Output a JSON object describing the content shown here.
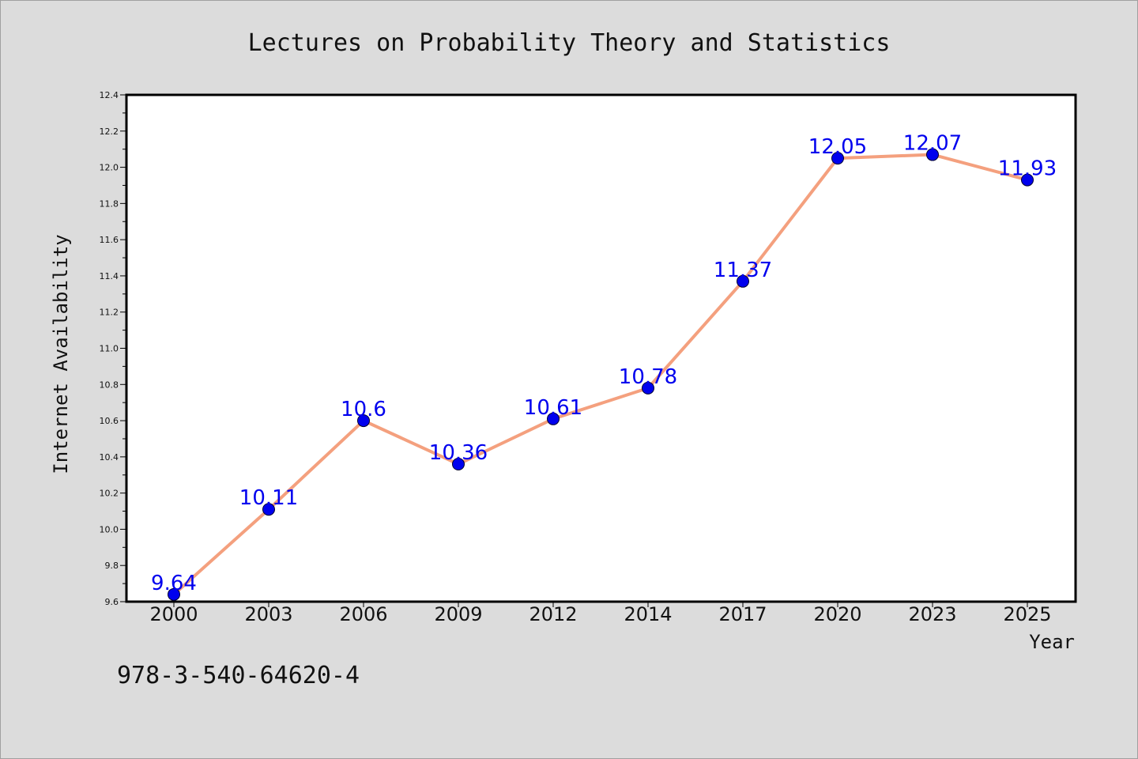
{
  "chart_data": {
    "type": "line",
    "title": "Lectures on Probability Theory and Statistics",
    "xlabel": "Year",
    "ylabel": "Internet Availability",
    "categories": [
      "2000",
      "2003",
      "2006",
      "2009",
      "2012",
      "2014",
      "2017",
      "2020",
      "2023",
      "2025"
    ],
    "series": [
      {
        "values": [
          9.64,
          10.11,
          10.6,
          10.36,
          10.61,
          10.78,
          11.37,
          12.05,
          12.07,
          11.93
        ],
        "labels": [
          "9.64",
          "10.11",
          "10.6",
          "10.36",
          "10.61",
          "10.78",
          "11.37",
          "12.05",
          "12.07",
          "11.93"
        ],
        "line_color": "#f4a07e",
        "marker_color": "#0000ee"
      }
    ],
    "ylim": [
      9.6,
      12.4
    ],
    "yticks": [
      "9.6",
      "9.8",
      "10.0",
      "10.2",
      "10.4",
      "10.6",
      "10.8",
      "11.0",
      "11.2",
      "11.4",
      "11.6",
      "11.8",
      "12.0",
      "12.2",
      "12.4"
    ],
    "grid": false,
    "legend": "none"
  },
  "footer": {
    "isbn": "978-3-540-64620-4"
  }
}
